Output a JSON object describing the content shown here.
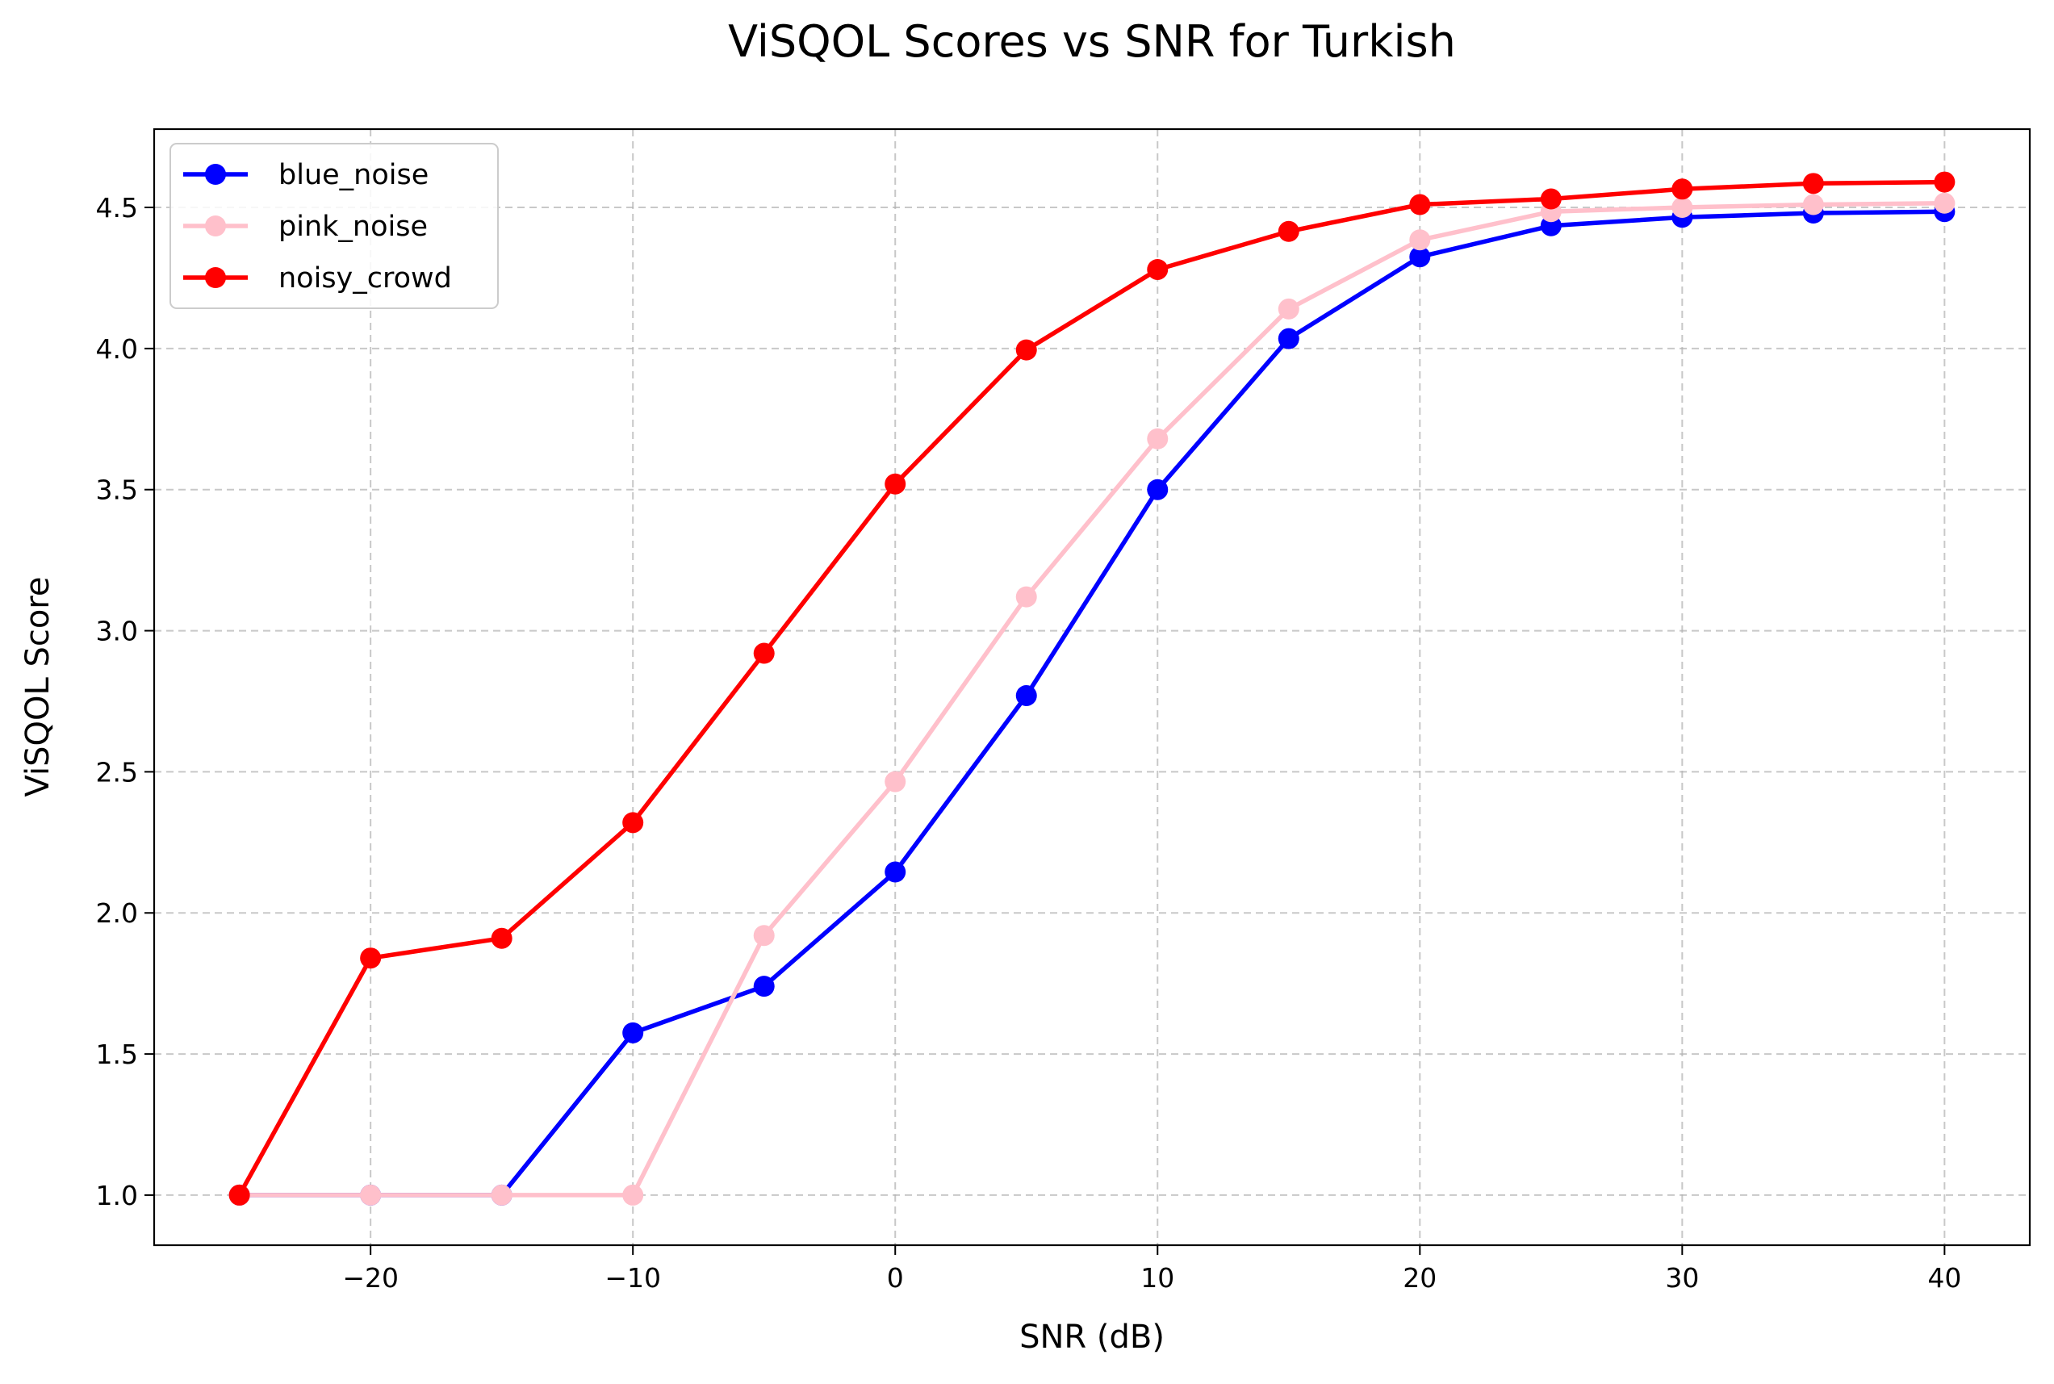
{
  "chart_data": {
    "type": "line",
    "title": "ViSQOL Scores vs SNR for Turkish",
    "xlabel": "SNR (dB)",
    "ylabel": "ViSQOL Score",
    "xlim": [
      -28.25,
      43.25
    ],
    "ylim": [
      0.8225,
      4.7775
    ],
    "xticks": [
      -20,
      -10,
      0,
      10,
      20,
      30,
      40
    ],
    "xtick_labels": [
      "−20",
      "−10",
      "0",
      "10",
      "20",
      "30",
      "40"
    ],
    "yticks": [
      1.0,
      1.5,
      2.0,
      2.5,
      3.0,
      3.5,
      4.0,
      4.5
    ],
    "ytick_labels": [
      "1.0",
      "1.5",
      "2.0",
      "2.5",
      "3.0",
      "3.5",
      "4.0",
      "4.5"
    ],
    "grid": true,
    "legend_position": "top-left",
    "x": [
      -25,
      -20,
      -15,
      -10,
      -5,
      0,
      5,
      10,
      15,
      20,
      25,
      30,
      35,
      40
    ],
    "series": [
      {
        "name": "blue_noise",
        "color": "#0000ff",
        "values": [
          1.0,
          1.0,
          1.0,
          1.575,
          1.74,
          2.145,
          2.77,
          3.5,
          4.035,
          4.325,
          4.435,
          4.465,
          4.48,
          4.485
        ]
      },
      {
        "name": "pink_noise",
        "color": "#ffc0cb",
        "values": [
          1.0,
          1.0,
          1.0,
          1.0,
          1.92,
          2.465,
          3.12,
          3.68,
          4.14,
          4.385,
          4.485,
          4.5,
          4.51,
          4.515
        ]
      },
      {
        "name": "noisy_crowd",
        "color": "#ff0000",
        "values": [
          1.0,
          1.84,
          1.91,
          2.32,
          2.92,
          3.52,
          3.995,
          4.28,
          4.415,
          4.51,
          4.53,
          4.565,
          4.585,
          4.59
        ]
      }
    ]
  }
}
